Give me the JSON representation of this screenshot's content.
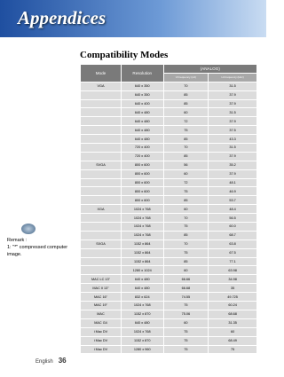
{
  "header": {
    "title": "Appendices"
  },
  "section_title": "Compatibility Modes",
  "table": {
    "columns": {
      "mode": "Mode",
      "resolution": "Resolution",
      "analog": "(ANALOG)",
      "v_freq": "V.Frequency (Hz)",
      "h_freq": "H.Frequency (kHz)"
    },
    "groups": [
      {
        "mode": "VGA",
        "rows": [
          [
            "640 x 350",
            "70",
            "31.5"
          ],
          [
            "640 x 350",
            "85",
            "37.9"
          ],
          [
            "640 x 400",
            "85",
            "37.9"
          ],
          [
            "640 x 480",
            "60",
            "31.5"
          ],
          [
            "640 x 480",
            "72",
            "37.9"
          ],
          [
            "640 x 480",
            "75",
            "37.5"
          ],
          [
            "640 x 480",
            "85",
            "43.3"
          ],
          [
            "720 x 400",
            "70",
            "31.5"
          ],
          [
            "720 x 400",
            "85",
            "37.9"
          ]
        ]
      },
      {
        "mode": "SVGA",
        "rows": [
          [
            "800 x 600",
            "56",
            "35.2"
          ],
          [
            "800 x 600",
            "60",
            "37.9"
          ],
          [
            "800 x 600",
            "72",
            "48.1"
          ],
          [
            "800 x 600",
            "75",
            "46.9"
          ],
          [
            "800 x 600",
            "85",
            "53.7"
          ]
        ]
      },
      {
        "mode": "XGA",
        "rows": [
          [
            "1024 x 768",
            "60",
            "48.4"
          ],
          [
            "1024 x 768",
            "70",
            "56.5"
          ],
          [
            "1024 x 768",
            "75",
            "60.0"
          ],
          [
            "1024 x 768",
            "85",
            "68.7"
          ]
        ]
      },
      {
        "mode": "SXGA",
        "rows": [
          [
            "1152 x 864",
            "70",
            "63.8"
          ],
          [
            "1152 x 864",
            "75",
            "67.5"
          ],
          [
            "1152 x 864",
            "85",
            "77.1"
          ],
          [
            "1280 x 1024",
            "60",
            "63.98"
          ]
        ]
      },
      {
        "mode": "MAC LC 13\"",
        "rows": [
          [
            "640 x 480",
            "66.66",
            "34.98"
          ]
        ]
      },
      {
        "mode": "MAC II 13\"",
        "rows": [
          [
            "640 x 480",
            "66.68",
            "35"
          ]
        ]
      },
      {
        "mode": "MAC 16\"",
        "rows": [
          [
            "832 x 624",
            "74.55",
            "49.725"
          ]
        ]
      },
      {
        "mode": "MAC 19\"",
        "rows": [
          [
            "1024 x 768",
            "75",
            "60.24"
          ]
        ]
      },
      {
        "mode": "MAC",
        "rows": [
          [
            "1152 x 870",
            "75.06",
            "68.68"
          ]
        ]
      },
      {
        "mode": "MAC G4",
        "rows": [
          [
            "640 x 480",
            "60",
            "31.35"
          ]
        ]
      },
      {
        "mode": "i Mac DV",
        "rows": [
          [
            "1024 x 768",
            "75",
            "60"
          ]
        ]
      },
      {
        "mode": "i Mac DV",
        "rows": [
          [
            "1152 x 870",
            "75",
            "68.49"
          ]
        ]
      },
      {
        "mode": "i Mac DV",
        "rows": [
          [
            "1280 x 960",
            "75",
            "75"
          ]
        ]
      }
    ]
  },
  "remark": {
    "label": "Remark :",
    "text": "1: \"*\" compressed computer image."
  },
  "footer": {
    "language": "English",
    "page": "36"
  }
}
